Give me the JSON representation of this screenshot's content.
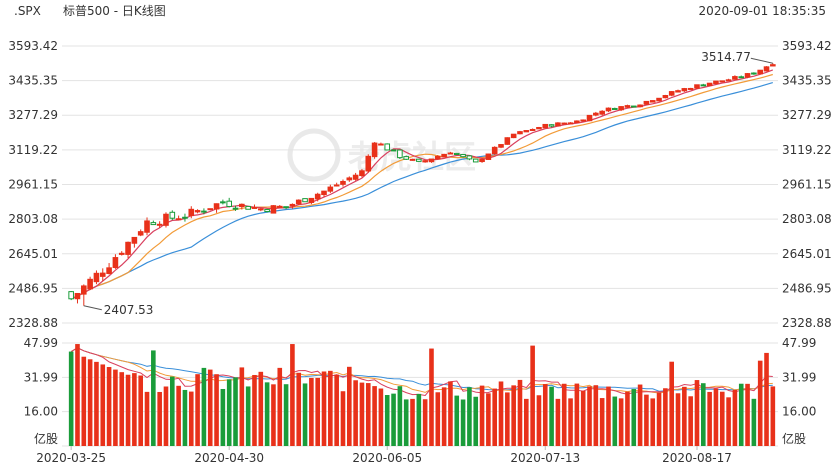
{
  "header": {
    "symbol": ".SPX",
    "title": "标普500 - 日K线图",
    "datetime": "2020-09-01 18:35:35"
  },
  "watermark": "老虎社区",
  "colors": {
    "up": "#e8311a",
    "down": "#1a9c3a",
    "ma5": "#d9405f",
    "ma10": "#f29b38",
    "ma20": "#3a8fd9",
    "grid": "#e3e3e3",
    "text": "#333333"
  },
  "chart_data": [
    {
      "type": "candlestick",
      "name": "price",
      "ylim": [
        2328.88,
        3593.42
      ],
      "y_ticks": [
        "3593.42",
        "3435.35",
        "3277.29",
        "3119.22",
        "2961.15",
        "2803.08",
        "2645.01",
        "2486.95",
        "2328.88"
      ],
      "x_ticks": [
        "2020-03-25",
        "2020-04-30",
        "2020-06-05",
        "2020-07-13",
        "2020-08-17"
      ],
      "annotations": [
        {
          "label": "3514.77",
          "value": 3514.77
        },
        {
          "label": "2407.53",
          "value": 2407.53
        }
      ],
      "moving_averages": [
        "MA5",
        "MA10",
        "MA20"
      ]
    },
    {
      "type": "bar",
      "name": "volume",
      "unit": "亿股",
      "ylim": [
        0,
        47.99
      ],
      "y_ticks": [
        "47.99",
        "31.99",
        "16.00"
      ]
    }
  ]
}
